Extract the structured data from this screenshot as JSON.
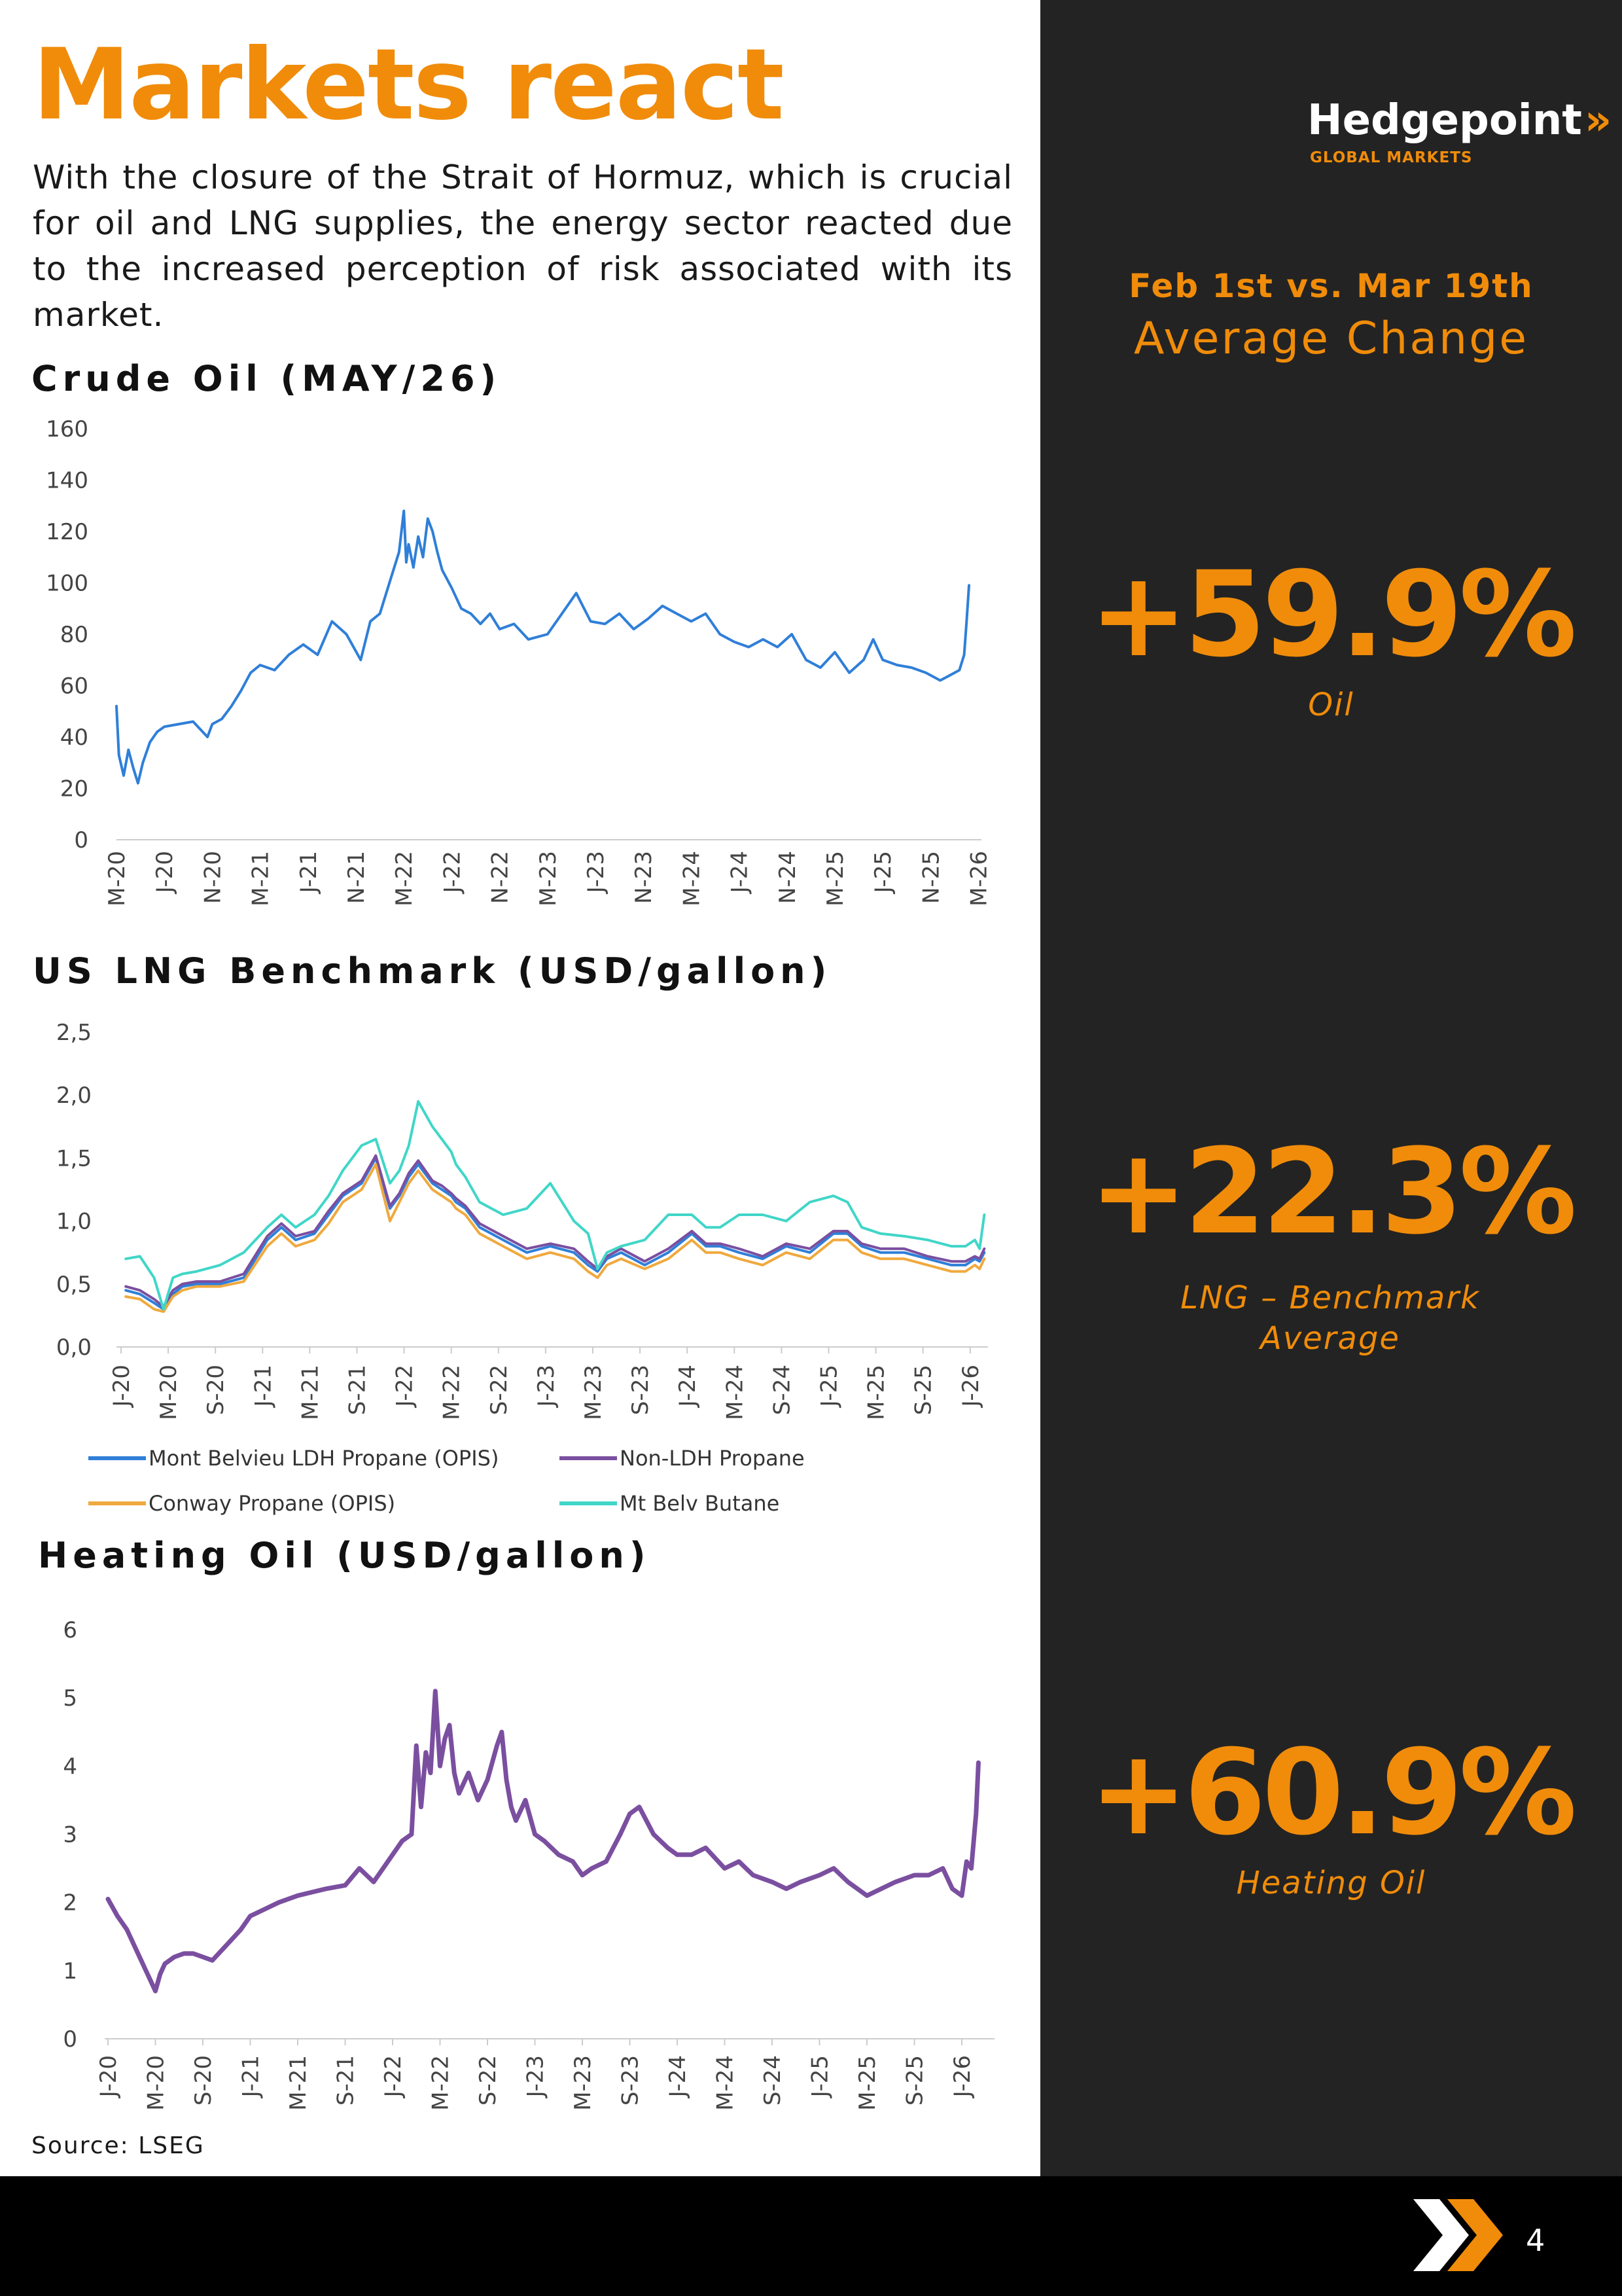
{
  "page": {
    "title": "Markets react",
    "intro": "With the closure of the Strait of Hormuz, which is crucial for oil and LNG supplies, the energy sector reacted due to the increased perception of risk associated with its market.",
    "source": "Source: LSEG",
    "page_number": "4"
  },
  "brand": {
    "name": "Hedgepoint",
    "arrow": "»",
    "sub": "GLOBAL MARKETS"
  },
  "summary": {
    "heading": "Feb 1st vs. Mar 19th",
    "subheading": "Average Change",
    "items": [
      {
        "value": "+59.9%",
        "label": "Oil"
      },
      {
        "value": "+22.3%",
        "label": "LNG – Benchmark Average"
      },
      {
        "value": "+60.9%",
        "label": "Heating Oil"
      }
    ]
  },
  "colors": {
    "accent": "#f08c0a",
    "dark": "#232323"
  },
  "chart_data": [
    {
      "type": "line",
      "title": "Crude Oil (MAY/26)",
      "xlabel": "",
      "ylabel": "",
      "ylim": [
        0,
        160
      ],
      "yticks": [
        "0",
        "20",
        "40",
        "60",
        "80",
        "100",
        "120",
        "140",
        "160"
      ],
      "categories": [
        "M-20",
        "J-20",
        "N-20",
        "M-21",
        "J-21",
        "N-21",
        "M-22",
        "J-22",
        "N-22",
        "M-23",
        "J-23",
        "N-23",
        "M-24",
        "J-24",
        "N-24",
        "M-25",
        "J-25",
        "N-25",
        "M-26"
      ],
      "x_range": [
        0,
        18
      ],
      "series": [
        {
          "name": "Crude Oil",
          "color": "#2f7fd8",
          "x": [
            0,
            0.05,
            0.15,
            0.25,
            0.35,
            0.45,
            0.55,
            0.7,
            0.85,
            1,
            1.3,
            1.6,
            1.9,
            2,
            2.2,
            2.4,
            2.6,
            2.8,
            3,
            3.3,
            3.6,
            3.9,
            4.2,
            4.5,
            4.8,
            5.1,
            5.3,
            5.5,
            5.7,
            5.9,
            6,
            6.05,
            6.1,
            6.2,
            6.3,
            6.4,
            6.5,
            6.6,
            6.7,
            6.8,
            7,
            7.2,
            7.4,
            7.6,
            7.8,
            8,
            8.3,
            8.6,
            9,
            9.3,
            9.6,
            9.9,
            10.2,
            10.5,
            10.8,
            11.1,
            11.4,
            11.7,
            12,
            12.3,
            12.6,
            12.9,
            13.2,
            13.5,
            13.8,
            14.1,
            14.4,
            14.7,
            15,
            15.3,
            15.6,
            15.8,
            16,
            16.3,
            16.6,
            16.9,
            17.2,
            17.4,
            17.6,
            17.7,
            17.75,
            17.8
          ],
          "values": [
            52,
            33,
            25,
            35,
            28,
            22,
            30,
            38,
            42,
            44,
            45,
            46,
            40,
            45,
            47,
            52,
            58,
            65,
            68,
            66,
            72,
            76,
            72,
            85,
            80,
            70,
            85,
            88,
            100,
            112,
            128,
            108,
            115,
            106,
            118,
            110,
            125,
            120,
            112,
            105,
            98,
            90,
            88,
            84,
            88,
            82,
            84,
            78,
            80,
            88,
            96,
            85,
            84,
            88,
            82,
            86,
            91,
            88,
            85,
            88,
            80,
            77,
            75,
            78,
            75,
            80,
            70,
            67,
            73,
            65,
            70,
            78,
            70,
            68,
            67,
            65,
            62,
            64,
            66,
            72,
            85,
            99
          ]
        }
      ]
    },
    {
      "type": "line",
      "title": "US LNG Benchmark (USD/gallon)",
      "xlabel": "",
      "ylabel": "",
      "ylim": [
        0,
        2.5
      ],
      "yticks": [
        "0,0",
        "0,5",
        "1,0",
        "1,5",
        "2,0",
        "2,5"
      ],
      "categories": [
        "J-20",
        "M-20",
        "S-20",
        "J-21",
        "M-21",
        "S-21",
        "J-22",
        "M-22",
        "S-22",
        "J-23",
        "M-23",
        "S-23",
        "J-24",
        "M-24",
        "S-24",
        "J-25",
        "M-25",
        "S-25",
        "J-26"
      ],
      "x_range": [
        -0.1,
        18.4
      ],
      "legend": [
        {
          "name": "Mont Belvieu LDH Propane (OPIS)",
          "color": "#2f7fd8"
        },
        {
          "name": "Non-LDH Propane",
          "color": "#7b4fa0"
        },
        {
          "name": "Conway Propane  (OPIS)",
          "color": "#f0a93e"
        },
        {
          "name": "Mt Belv Butane",
          "color": "#40d6c8"
        }
      ],
      "x": [
        0,
        0.3,
        0.6,
        0.8,
        1,
        1.2,
        1.5,
        2,
        2.5,
        3,
        3.3,
        3.6,
        4,
        4.3,
        4.6,
        5,
        5.3,
        5.6,
        5.8,
        6,
        6.2,
        6.5,
        6.7,
        6.9,
        7,
        7.2,
        7.5,
        8,
        8.5,
        9,
        9.5,
        9.8,
        10,
        10.2,
        10.5,
        11,
        11.5,
        12,
        12.3,
        12.6,
        13,
        13.5,
        14,
        14.5,
        15,
        15.3,
        15.6,
        16,
        16.5,
        17,
        17.5,
        17.8,
        18,
        18.1,
        18.2
      ],
      "series": [
        {
          "name": "Mont Belvieu LDH Propane (OPIS)",
          "color": "#2f7fd8",
          "values": [
            0.45,
            0.42,
            0.35,
            0.3,
            0.42,
            0.48,
            0.5,
            0.5,
            0.55,
            0.85,
            0.95,
            0.85,
            0.9,
            1.05,
            1.2,
            1.3,
            1.5,
            1.1,
            1.2,
            1.35,
            1.45,
            1.3,
            1.25,
            1.2,
            1.15,
            1.1,
            0.95,
            0.85,
            0.75,
            0.8,
            0.75,
            0.65,
            0.6,
            0.7,
            0.75,
            0.65,
            0.75,
            0.9,
            0.8,
            0.8,
            0.75,
            0.7,
            0.8,
            0.75,
            0.9,
            0.9,
            0.8,
            0.75,
            0.75,
            0.7,
            0.65,
            0.65,
            0.7,
            0.68,
            0.75
          ]
        },
        {
          "name": "Non-LDH Propane",
          "color": "#7b4fa0",
          "values": [
            0.48,
            0.45,
            0.38,
            0.32,
            0.45,
            0.5,
            0.52,
            0.52,
            0.58,
            0.88,
            0.98,
            0.88,
            0.92,
            1.08,
            1.22,
            1.32,
            1.52,
            1.12,
            1.22,
            1.38,
            1.48,
            1.32,
            1.28,
            1.22,
            1.18,
            1.12,
            0.98,
            0.88,
            0.78,
            0.82,
            0.78,
            0.68,
            0.62,
            0.72,
            0.78,
            0.68,
            0.78,
            0.92,
            0.82,
            0.82,
            0.78,
            0.72,
            0.82,
            0.78,
            0.92,
            0.92,
            0.82,
            0.78,
            0.78,
            0.72,
            0.68,
            0.68,
            0.72,
            0.7,
            0.78
          ]
        },
        {
          "name": "Conway Propane  (OPIS)",
          "color": "#f0a93e",
          "values": [
            0.4,
            0.38,
            0.3,
            0.28,
            0.4,
            0.45,
            0.48,
            0.48,
            0.52,
            0.8,
            0.9,
            0.8,
            0.85,
            0.98,
            1.15,
            1.25,
            1.45,
            1.0,
            1.15,
            1.3,
            1.4,
            1.25,
            1.2,
            1.15,
            1.1,
            1.05,
            0.9,
            0.8,
            0.7,
            0.75,
            0.7,
            0.6,
            0.55,
            0.65,
            0.7,
            0.62,
            0.7,
            0.85,
            0.75,
            0.75,
            0.7,
            0.65,
            0.75,
            0.7,
            0.85,
            0.85,
            0.75,
            0.7,
            0.7,
            0.65,
            0.6,
            0.6,
            0.65,
            0.62,
            0.7
          ]
        },
        {
          "name": "Mt Belv Butane",
          "color": "#40d6c8",
          "values": [
            0.7,
            0.72,
            0.55,
            0.3,
            0.55,
            0.58,
            0.6,
            0.65,
            0.75,
            0.95,
            1.05,
            0.95,
            1.05,
            1.2,
            1.4,
            1.6,
            1.65,
            1.3,
            1.4,
            1.6,
            1.95,
            1.75,
            1.65,
            1.55,
            1.45,
            1.35,
            1.15,
            1.05,
            1.1,
            1.3,
            1.0,
            0.9,
            0.62,
            0.75,
            0.8,
            0.85,
            1.05,
            1.05,
            0.95,
            0.95,
            1.05,
            1.05,
            1.0,
            1.15,
            1.2,
            1.15,
            0.95,
            0.9,
            0.88,
            0.85,
            0.8,
            0.8,
            0.85,
            0.78,
            1.05
          ]
        }
      ]
    },
    {
      "type": "line",
      "title": "Heating Oil (USD/gallon)",
      "xlabel": "",
      "ylabel": "",
      "ylim": [
        0,
        6
      ],
      "yticks": [
        "0",
        "1",
        "2",
        "3",
        "4",
        "5",
        "6"
      ],
      "categories": [
        "J-20",
        "M-20",
        "S-20",
        "J-21",
        "M-21",
        "S-21",
        "J-22",
        "M-22",
        "S-22",
        "J-23",
        "M-23",
        "S-23",
        "J-24",
        "M-24",
        "S-24",
        "J-25",
        "M-25",
        "S-25",
        "J-26"
      ],
      "x_range": [
        0,
        18.6
      ],
      "series": [
        {
          "name": "Heating Oil",
          "color": "#7b4fa0",
          "x": [
            0,
            0.2,
            0.4,
            0.6,
            0.8,
            0.9,
            1,
            1.1,
            1.2,
            1.4,
            1.6,
            1.8,
            2,
            2.2,
            2.4,
            2.6,
            2.8,
            3,
            3.3,
            3.6,
            4,
            4.3,
            4.6,
            5,
            5.3,
            5.6,
            5.8,
            6,
            6.2,
            6.4,
            6.5,
            6.6,
            6.7,
            6.8,
            6.9,
            7,
            7.1,
            7.2,
            7.3,
            7.4,
            7.6,
            7.8,
            8,
            8.2,
            8.3,
            8.4,
            8.5,
            8.6,
            8.8,
            9,
            9.2,
            9.5,
            9.8,
            10,
            10.2,
            10.5,
            10.8,
            11,
            11.2,
            11.5,
            11.8,
            12,
            12.3,
            12.6,
            13,
            13.3,
            13.6,
            14,
            14.3,
            14.6,
            15,
            15.3,
            15.6,
            16,
            16.3,
            16.6,
            17,
            17.3,
            17.6,
            17.8,
            18,
            18.1,
            18.2,
            18.3,
            18.35
          ],
          "values": [
            2.05,
            1.8,
            1.6,
            1.3,
            1.0,
            0.85,
            0.7,
            0.95,
            1.1,
            1.2,
            1.25,
            1.25,
            1.2,
            1.15,
            1.3,
            1.45,
            1.6,
            1.8,
            1.9,
            2.0,
            2.1,
            2.15,
            2.2,
            2.25,
            2.5,
            2.3,
            2.5,
            2.7,
            2.9,
            3.0,
            4.3,
            3.4,
            4.2,
            3.9,
            5.1,
            4.0,
            4.4,
            4.6,
            3.9,
            3.6,
            3.9,
            3.5,
            3.8,
            4.3,
            4.5,
            3.8,
            3.4,
            3.2,
            3.5,
            3.0,
            2.9,
            2.7,
            2.6,
            2.4,
            2.5,
            2.6,
            3.0,
            3.3,
            3.4,
            3.0,
            2.8,
            2.7,
            2.7,
            2.8,
            2.5,
            2.6,
            2.4,
            2.3,
            2.2,
            2.3,
            2.4,
            2.5,
            2.3,
            2.1,
            2.2,
            2.3,
            2.4,
            2.4,
            2.5,
            2.2,
            2.1,
            2.6,
            2.5,
            3.3,
            4.05
          ]
        }
      ]
    }
  ]
}
